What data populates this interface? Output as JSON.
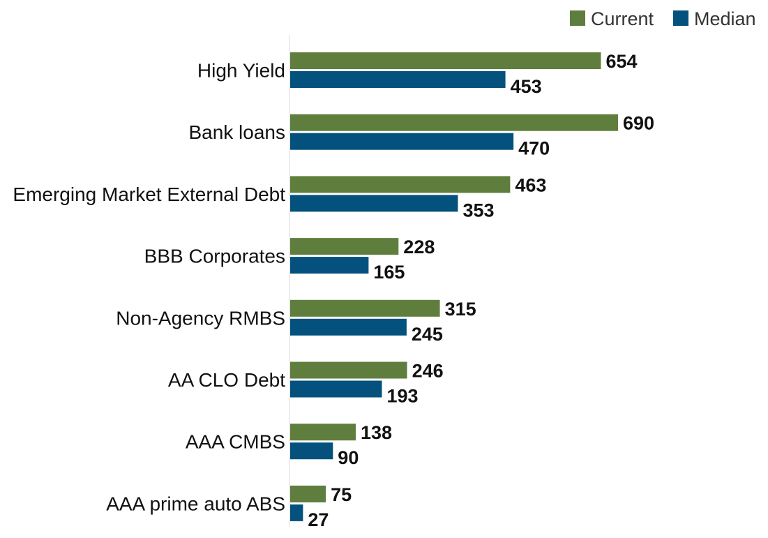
{
  "chart_data": {
    "type": "bar",
    "orientation": "horizontal",
    "categories": [
      "High Yield",
      "Bank loans",
      "Emerging Market External Debt",
      "BBB Corporates",
      "Non-Agency RMBS",
      "AA CLO Debt",
      "AAA CMBS",
      "AAA prime auto ABS"
    ],
    "series": [
      {
        "name": "Current",
        "color": "#5f7e3d",
        "values": [
          654,
          690,
          463,
          228,
          315,
          246,
          138,
          75
        ]
      },
      {
        "name": "Median",
        "color": "#03517c",
        "values": [
          453,
          470,
          353,
          165,
          245,
          193,
          90,
          27
        ]
      }
    ],
    "legend": "top-right",
    "grid": false,
    "data_labels": true,
    "xlim": [
      0,
      690
    ]
  }
}
